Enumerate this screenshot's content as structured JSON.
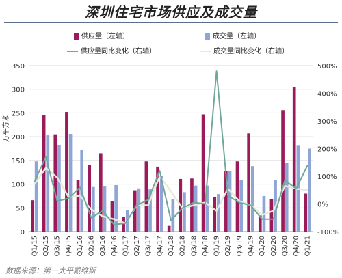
{
  "title": "深圳住宅市场供应及成交量",
  "source": "数据来源：第一太平戴维斯",
  "colors": {
    "supply_bar": "#9b1b5a",
    "deal_bar": "#8ea5d6",
    "supply_line": "#6fa89a",
    "deal_line": "#e6ead8"
  },
  "legend": {
    "supply_bar": "供应量（左轴）",
    "deal_bar": "成交量（左轴）",
    "supply_line": "供应量同比变化（右轴）",
    "deal_line": "成交量同比变化（右轴）"
  },
  "chart_data": {
    "type": "bar",
    "categories": [
      "Q1/15",
      "Q2/15",
      "Q3/15",
      "Q4/15",
      "Q1/16",
      "Q2/16",
      "Q3/16",
      "Q4/16",
      "Q1/17",
      "Q2/17",
      "Q3/17",
      "Q4/17",
      "Q1/18",
      "Q2/18",
      "Q3/18",
      "Q4/18",
      "Q1/19",
      "Q2/19",
      "Q3/19",
      "Q4/19",
      "Q1/20",
      "Q2/20",
      "Q3/20",
      "Q4/20",
      "Q1/21"
    ],
    "series": [
      {
        "name": "供应量（左轴）",
        "type": "bar",
        "axis": "left",
        "values": [
          66,
          246,
          205,
          252,
          109,
          140,
          165,
          64,
          31,
          87,
          148,
          137,
          12,
          111,
          112,
          247,
          73,
          128,
          148,
          207,
          34,
          68,
          256,
          304,
          80
        ]
      },
      {
        "name": "成交量（左轴）",
        "type": "bar",
        "axis": "left",
        "values": [
          148,
          203,
          183,
          206,
          172,
          94,
          95,
          98,
          46,
          91,
          89,
          118,
          69,
          83,
          97,
          97,
          79,
          127,
          109,
          138,
          75,
          108,
          145,
          181,
          175
        ]
      },
      {
        "name": "供应量同比变化（右轴）",
        "type": "line",
        "axis": "right",
        "values": [
          80,
          170,
          10,
          20,
          60,
          -50,
          -25,
          -75,
          -70,
          -5,
          15,
          120,
          -60,
          -15,
          5,
          0,
          480,
          30,
          5,
          -5,
          -55,
          -55,
          85,
          55,
          140
        ]
      },
      {
        "name": "成交量同比变化（右轴）",
        "type": "line",
        "axis": "right",
        "values": [
          70,
          130,
          95,
          25,
          30,
          -20,
          -45,
          -55,
          -70,
          -5,
          -5,
          100,
          45,
          -15,
          -5,
          5,
          -25,
          55,
          10,
          -5,
          -40,
          -25,
          65,
          55,
          50
        ]
      }
    ],
    "ylabel": "万平方米",
    "ylim": [
      0,
      350
    ],
    "yticks": [
      0,
      50,
      100,
      150,
      200,
      250,
      300,
      350
    ],
    "y2lim": [
      -100,
      500
    ],
    "y2ticks": [
      "-100%",
      "0%",
      "100%",
      "200%",
      "300%",
      "400%",
      "500%"
    ],
    "y2tick_values": [
      -100,
      0,
      100,
      200,
      300,
      400,
      500
    ],
    "legend_position": "top"
  }
}
